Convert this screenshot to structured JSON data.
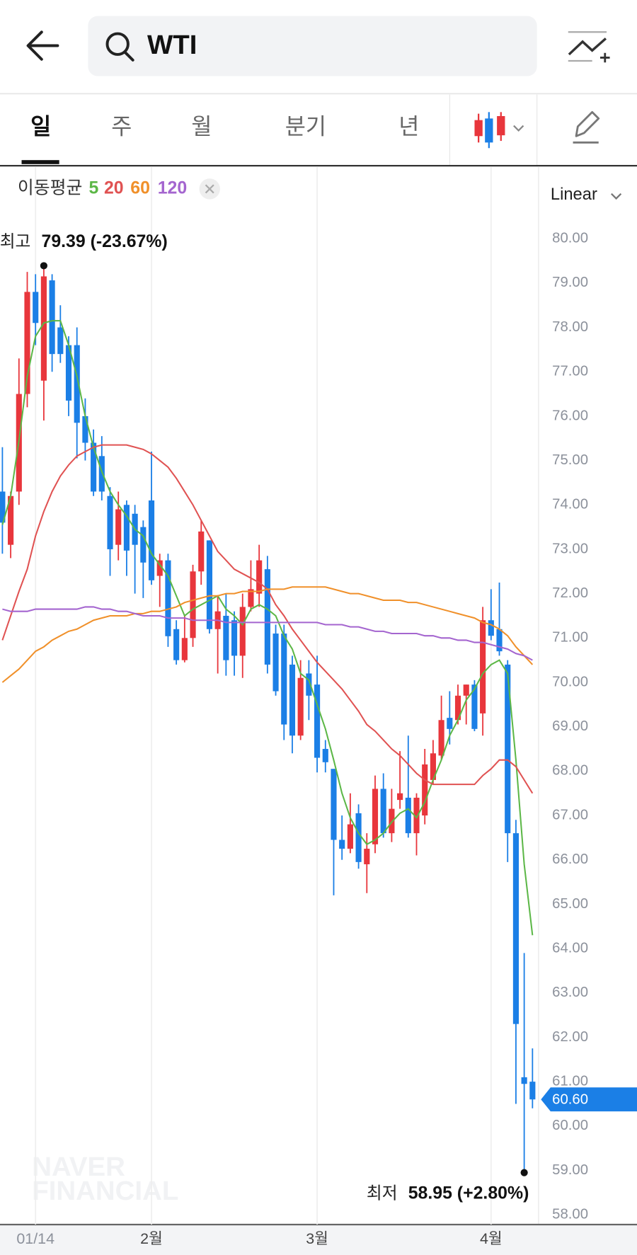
{
  "header": {
    "search_text": "WTI"
  },
  "tabs": [
    "일",
    "주",
    "월",
    "분기",
    "년"
  ],
  "chart_data": {
    "type": "candlestick",
    "legend_title": "이동평균",
    "y_scale_label": "Linear",
    "watermark": [
      "NAVER",
      "FINANCIAL"
    ],
    "up_color": "#e8363c",
    "down_color": "#1b7fe6",
    "x_grid": true,
    "categories": [
      null,
      null,
      null,
      null,
      "01/14",
      null,
      null,
      null,
      null,
      null,
      null,
      null,
      null,
      null,
      null,
      null,
      null,
      null,
      "2월",
      null,
      null,
      null,
      null,
      null,
      null,
      null,
      null,
      null,
      null,
      null,
      null,
      null,
      null,
      null,
      null,
      null,
      null,
      null,
      "3월",
      null,
      null,
      null,
      null,
      null,
      null,
      null,
      null,
      null,
      null,
      null,
      null,
      null,
      null,
      null,
      null,
      null,
      null,
      null,
      null,
      "4월",
      null,
      null,
      null,
      null,
      null
    ],
    "open": [
      74.3,
      73.1,
      74.3,
      76.5,
      78.8,
      76.8,
      79.06,
      78.0,
      77.6,
      77.6,
      76.0,
      75.4,
      75.1,
      74.2,
      73.1,
      74.0,
      73.8,
      73.5,
      74.1,
      72.4,
      72.75,
      71.2,
      70.5,
      71.0,
      72.5,
      73.2,
      71.2,
      71.5,
      71.4,
      70.6,
      71.7,
      72.0,
      72.55,
      71.1,
      71.1,
      70.4,
      68.8,
      70.2,
      69.95,
      68.5,
      68.05,
      66.45,
      66.25,
      67.05,
      65.9,
      66.35,
      67.6,
      66.6,
      67.35,
      67.4,
      66.6,
      67.0,
      67.8,
      68.35,
      69.2,
      69.15,
      69.7,
      69.95,
      69.3,
      71.4,
      71.2,
      70.4,
      66.6,
      61.1,
      61.0
    ],
    "high": [
      75.3,
      74.3,
      77.3,
      79.25,
      79.2,
      79.39,
      79.2,
      78.5,
      77.8,
      78.0,
      76.4,
      75.7,
      75.55,
      74.4,
      74.3,
      74.1,
      74.0,
      73.65,
      75.2,
      72.9,
      72.9,
      71.4,
      71.5,
      72.65,
      73.65,
      73.2,
      71.95,
      72.0,
      71.6,
      72.0,
      72.75,
      73.1,
      72.85,
      71.3,
      71.3,
      70.6,
      70.5,
      70.5,
      70.6,
      68.7,
      68.05,
      67.0,
      67.5,
      67.25,
      66.6,
      67.9,
      67.95,
      67.6,
      68.45,
      68.8,
      67.5,
      68.5,
      68.7,
      69.7,
      69.8,
      69.95,
      69.95,
      70.05,
      71.7,
      72.1,
      72.25,
      70.5,
      66.9,
      63.9,
      61.75
    ],
    "low": [
      72.9,
      72.8,
      74.0,
      76.2,
      77.6,
      75.9,
      77.0,
      77.2,
      76.0,
      75.05,
      75.0,
      74.2,
      74.1,
      72.4,
      72.75,
      72.4,
      72.0,
      71.9,
      72.2,
      71.7,
      70.8,
      70.4,
      70.45,
      70.8,
      72.2,
      71.1,
      70.2,
      70.15,
      70.15,
      70.1,
      71.6,
      71.7,
      70.2,
      69.7,
      68.7,
      68.4,
      68.7,
      69.15,
      67.97,
      67.97,
      65.2,
      66.0,
      66.15,
      65.8,
      65.25,
      66.15,
      66.5,
      66.4,
      67.15,
      66.5,
      66.1,
      66.8,
      67.7,
      68.25,
      68.6,
      69.05,
      69.05,
      68.9,
      68.8,
      70.95,
      70.6,
      65.95,
      60.5,
      58.95,
      60.4
    ],
    "close": [
      73.6,
      74.2,
      76.5,
      78.8,
      78.1,
      79.15,
      77.4,
      77.4,
      76.35,
      75.85,
      75.4,
      74.3,
      74.3,
      73.0,
      73.9,
      72.97,
      73.1,
      72.7,
      72.3,
      72.75,
      71.04,
      70.5,
      71.0,
      72.5,
      73.4,
      71.2,
      71.6,
      70.5,
      70.6,
      71.7,
      72.1,
      72.75,
      70.4,
      69.8,
      69.05,
      68.8,
      70.1,
      69.7,
      68.3,
      68.2,
      66.45,
      66.25,
      66.8,
      65.95,
      66.25,
      67.6,
      66.6,
      67.15,
      67.5,
      66.6,
      67.4,
      68.15,
      68.4,
      69.15,
      68.95,
      69.7,
      69.95,
      68.95,
      71.4,
      71.05,
      70.7,
      66.6,
      62.3,
      60.95,
      60.6
    ],
    "series": [
      {
        "name": "5",
        "color": "#5cb747",
        "values": [
          73.55,
          74.2,
          75.45,
          76.9,
          77.8,
          78.1,
          78.15,
          78.15,
          77.6,
          76.9,
          76.0,
          75.3,
          74.75,
          74.3,
          74.0,
          73.75,
          73.45,
          73.3,
          72.9,
          72.65,
          72.4,
          71.95,
          71.5,
          71.65,
          71.75,
          71.85,
          71.95,
          71.65,
          71.5,
          71.3,
          71.65,
          71.75,
          71.65,
          71.5,
          71.05,
          70.75,
          70.2,
          70.05,
          69.5,
          68.95,
          68.25,
          67.5,
          66.95,
          66.6,
          66.35,
          66.45,
          66.6,
          66.85,
          67.05,
          67.15,
          66.95,
          67.3,
          67.8,
          68.25,
          68.8,
          69.15,
          69.6,
          69.85,
          70.2,
          70.4,
          70.5,
          70.2,
          68.25,
          65.9,
          64.3
        ]
      },
      {
        "name": "20",
        "color": "#e05252",
        "values": [
          70.95,
          71.5,
          72.05,
          72.55,
          73.3,
          73.85,
          74.3,
          74.65,
          74.9,
          75.1,
          75.2,
          75.3,
          75.35,
          75.35,
          75.35,
          75.35,
          75.3,
          75.25,
          75.15,
          75.0,
          74.85,
          74.6,
          74.3,
          74.0,
          73.65,
          73.3,
          72.95,
          72.75,
          72.55,
          72.45,
          72.35,
          72.25,
          72.1,
          71.75,
          71.5,
          71.2,
          70.95,
          70.7,
          70.45,
          70.25,
          70.05,
          69.85,
          69.6,
          69.35,
          69.05,
          68.9,
          68.7,
          68.5,
          68.35,
          68.15,
          67.95,
          67.8,
          67.7,
          67.7,
          67.7,
          67.7,
          67.7,
          67.7,
          67.9,
          68.05,
          68.25,
          68.25,
          68.1,
          67.8,
          67.5
        ]
      },
      {
        "name": "60",
        "color": "#f0902a",
        "values": [
          70.0,
          70.15,
          70.3,
          70.5,
          70.7,
          70.8,
          70.95,
          71.05,
          71.15,
          71.2,
          71.3,
          71.4,
          71.45,
          71.5,
          71.5,
          71.5,
          71.55,
          71.55,
          71.6,
          71.6,
          71.65,
          71.7,
          71.8,
          71.85,
          71.9,
          71.95,
          71.95,
          72.0,
          72.0,
          72.05,
          72.05,
          72.05,
          72.1,
          72.1,
          72.1,
          72.15,
          72.15,
          72.15,
          72.15,
          72.15,
          72.1,
          72.05,
          72.0,
          72.0,
          71.95,
          71.9,
          71.85,
          71.85,
          71.85,
          71.8,
          71.8,
          71.75,
          71.7,
          71.65,
          71.6,
          71.55,
          71.5,
          71.45,
          71.35,
          71.3,
          71.2,
          71.05,
          70.8,
          70.6,
          70.4
        ]
      },
      {
        "name": "120",
        "color": "#a465cf",
        "values": [
          71.65,
          71.6,
          71.6,
          71.6,
          71.65,
          71.65,
          71.65,
          71.65,
          71.65,
          71.65,
          71.7,
          71.7,
          71.65,
          71.65,
          71.6,
          71.6,
          71.55,
          71.5,
          71.5,
          71.5,
          71.45,
          71.45,
          71.45,
          71.4,
          71.4,
          71.4,
          71.4,
          71.35,
          71.35,
          71.35,
          71.35,
          71.35,
          71.35,
          71.35,
          71.35,
          71.35,
          71.35,
          71.35,
          71.35,
          71.3,
          71.3,
          71.3,
          71.25,
          71.25,
          71.2,
          71.15,
          71.15,
          71.1,
          71.1,
          71.1,
          71.1,
          71.05,
          71.05,
          71.0,
          71.0,
          70.95,
          70.95,
          70.9,
          70.9,
          70.85,
          70.8,
          70.75,
          70.65,
          70.6,
          70.5
        ]
      }
    ],
    "ylim": [
      57.78,
      81.59
    ],
    "yticks": [
      {
        "value": 58,
        "label": "58.00"
      },
      {
        "value": 59,
        "label": "59.00"
      },
      {
        "value": 60,
        "label": "60.00"
      },
      {
        "value": 61,
        "label": "61.00"
      },
      {
        "value": 62,
        "label": "62.00"
      },
      {
        "value": 63,
        "label": "63.00"
      },
      {
        "value": 64,
        "label": "64.00"
      },
      {
        "value": 65,
        "label": "65.00"
      },
      {
        "value": 66,
        "label": "66.00"
      },
      {
        "value": 67,
        "label": "67.00"
      },
      {
        "value": 68,
        "label": "68.00"
      },
      {
        "value": 69,
        "label": "69.00"
      },
      {
        "value": 70,
        "label": "70.00"
      },
      {
        "value": 71,
        "label": "71.00"
      },
      {
        "value": 72,
        "label": "72.00"
      },
      {
        "value": 73,
        "label": "73.00"
      },
      {
        "value": 74,
        "label": "74.00"
      },
      {
        "value": 75,
        "label": "75.00"
      },
      {
        "value": 76,
        "label": "76.00"
      },
      {
        "value": 77,
        "label": "77.00"
      },
      {
        "value": 78,
        "label": "78.00"
      },
      {
        "value": 79,
        "label": "79.00"
      },
      {
        "value": 80,
        "label": "80.00"
      }
    ],
    "high_annotation": {
      "label": "최고",
      "text": "79.39 (-23.67%)"
    },
    "low_annotation": {
      "label": "최저",
      "text": "58.95 (+2.80%)"
    },
    "current_price": {
      "value": 60.6,
      "label": "60.60"
    }
  }
}
